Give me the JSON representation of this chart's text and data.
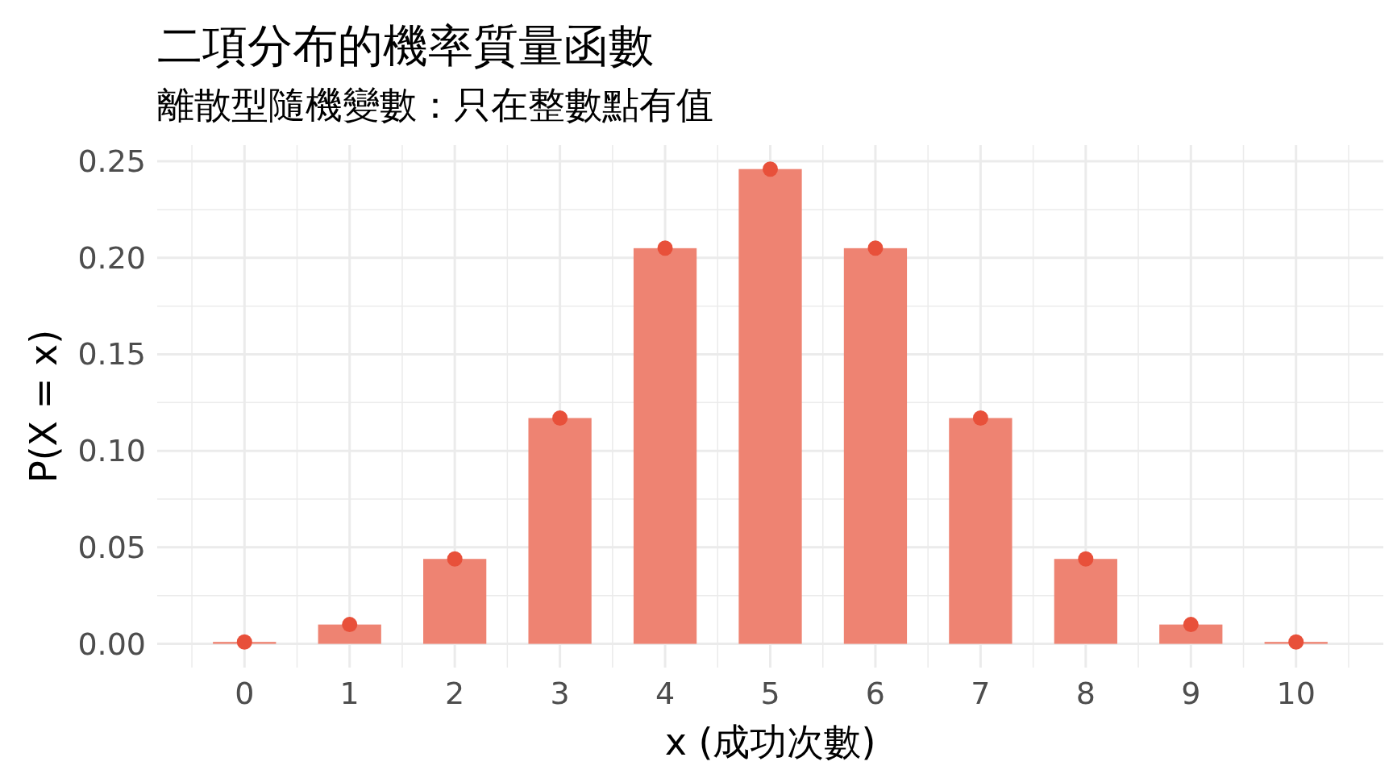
{
  "chart_data": {
    "type": "bar",
    "title": "二項分布的機率質量函數",
    "subtitle": "離散型隨機變數：只在整數點有值",
    "xlabel": "x (成功次數)",
    "ylabel": "P(X = x)",
    "x": [
      0,
      1,
      2,
      3,
      4,
      5,
      6,
      7,
      8,
      9,
      10
    ],
    "series": [
      {
        "color": "#ee8372",
        "values": [
          0.001,
          0.01,
          0.044,
          0.117,
          0.205,
          0.246,
          0.205,
          0.117,
          0.044,
          0.01,
          0.001
        ]
      },
      {
        "type": "scatter",
        "color": "#e8503a",
        "values": [
          0.001,
          0.01,
          0.044,
          0.117,
          0.205,
          0.246,
          0.205,
          0.117,
          0.044,
          0.01,
          0.001
        ]
      }
    ],
    "xlim": [
      -0.83,
      10.83
    ],
    "ylim": [
      -0.0123,
      0.2584
    ],
    "xticks": [
      {
        "value": -0.5,
        "label": null
      },
      0,
      {
        "value": 0.5,
        "label": null
      },
      1,
      {
        "value": 1.5,
        "label": null
      },
      2,
      {
        "value": 2.5,
        "label": null
      },
      3,
      {
        "value": 3.5,
        "label": null
      },
      4,
      {
        "value": 4.5,
        "label": null
      },
      5,
      {
        "value": 5.5,
        "label": null
      },
      6,
      {
        "value": 6.5,
        "label": null
      },
      7,
      {
        "value": 7.5,
        "label": null
      },
      8,
      {
        "value": 8.5,
        "label": null
      },
      9,
      {
        "value": 9.5,
        "label": null
      },
      10,
      {
        "value": 10.5,
        "label": null
      }
    ],
    "yticks": [
      {
        "value": 0,
        "label": "0.00"
      },
      {
        "value": 0.025,
        "label": null
      },
      {
        "value": 0.05,
        "label": "0.05"
      },
      {
        "value": 0.075,
        "label": null
      },
      {
        "value": 0.1,
        "label": "0.10"
      },
      {
        "value": 0.125,
        "label": null
      },
      {
        "value": 0.15,
        "label": "0.15"
      },
      {
        "value": 0.175,
        "label": null
      },
      {
        "value": 0.2,
        "label": "0.20"
      },
      {
        "value": 0.225,
        "label": null
      },
      {
        "value": 0.25,
        "label": "0.25"
      }
    ],
    "grid": true,
    "marker": "circle"
  }
}
